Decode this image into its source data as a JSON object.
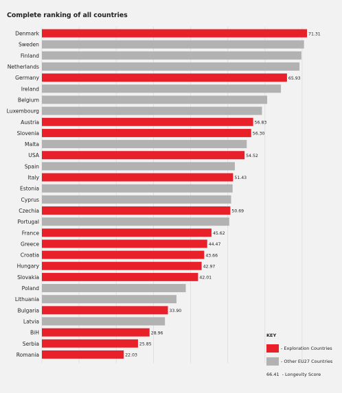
{
  "chart_data": {
    "type": "bar",
    "orientation": "horizontal",
    "title": "Complete ranking of all countries",
    "categories": [
      "Denmark",
      "Sweden",
      "Finland",
      "Netherlands",
      "Germany",
      "Ireland",
      "Belgium",
      "Luxembourg",
      "Austria",
      "Slovenia",
      "Malta",
      "USA",
      "Spain",
      "Italy",
      "Estonia",
      "Cyprus",
      "Czechia",
      "Portugal",
      "France",
      "Greece",
      "Croatia",
      "Hungary",
      "Slovakia",
      "Poland",
      "Lithuania",
      "Bulgaria",
      "Latvia",
      "BiH",
      "Serbia",
      "Romania"
    ],
    "values": [
      71.31,
      70.5,
      69.8,
      69.3,
      65.93,
      64.3,
      60.6,
      59.2,
      56.83,
      56.3,
      55.1,
      54.52,
      51.9,
      51.43,
      51.3,
      50.9,
      50.69,
      50.4,
      45.62,
      44.47,
      43.66,
      42.97,
      42.01,
      38.7,
      36.2,
      33.9,
      33.1,
      28.96,
      25.85,
      22.03
    ],
    "groups": [
      "exploration",
      "other",
      "other",
      "other",
      "exploration",
      "other",
      "other",
      "other",
      "exploration",
      "exploration",
      "other",
      "exploration",
      "other",
      "exploration",
      "other",
      "other",
      "exploration",
      "other",
      "exploration",
      "exploration",
      "exploration",
      "exploration",
      "exploration",
      "other",
      "other",
      "exploration",
      "other",
      "exploration",
      "exploration",
      "exploration"
    ],
    "value_labels": [
      "71.31",
      "",
      "",
      "",
      "65.93",
      "",
      "",
      "",
      "56.83",
      "56.30",
      "",
      "54.52",
      "",
      "51.43",
      "",
      "",
      "50.69",
      "",
      "45.62",
      "44.47",
      "43.66",
      "42.97",
      "42.01",
      "",
      "",
      "33.90",
      "",
      "28.96",
      "25.85",
      "22.03"
    ],
    "xlim": [
      0,
      75
    ],
    "grid": true,
    "legend_position": "bottom-right"
  },
  "legend": {
    "title": "KEY",
    "exploration": "- Exploration Countries",
    "other": "- Other EU27 Countries",
    "score_value": "66.41",
    "score_label": "- Longevity Score"
  },
  "colors": {
    "exploration": "#e8202a",
    "other": "#b2b2b2",
    "background": "#f2f2f2",
    "grid": "#dcdcdc"
  }
}
